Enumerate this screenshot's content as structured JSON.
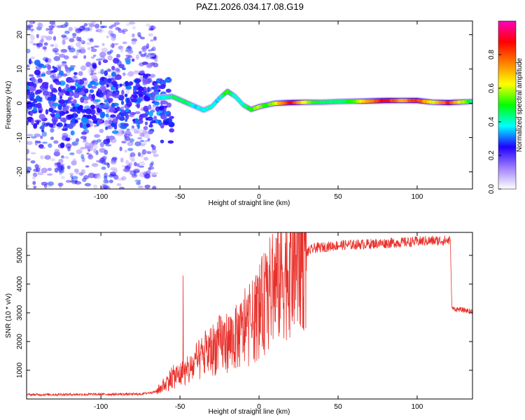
{
  "title": "PAZ1.2026.034.17.08.G19",
  "chart_data": [
    {
      "type": "heatmap",
      "xlabel": "Height of straight line (km)",
      "ylabel": "Frequency (Hz)",
      "xlim": [
        -147,
        135
      ],
      "ylim": [
        -25,
        24
      ],
      "xticks": [
        -100,
        -50,
        0,
        50,
        100
      ],
      "xtick_labels": [
        "-100",
        "-50",
        "0",
        "50",
        "100"
      ],
      "yticks": [
        -20,
        -10,
        0,
        10,
        20
      ],
      "ytick_labels": [
        "-20",
        "-10",
        "0",
        "10",
        "20"
      ],
      "colorbar": {
        "label": "Normalized spectral amplitude",
        "range": [
          0.0,
          1.0
        ],
        "ticks": [
          0.0,
          0.2,
          0.4,
          0.6,
          0.8
        ],
        "tick_labels": [
          "0.0",
          "0.2",
          "0.4",
          "0.6",
          "0.8"
        ],
        "colormap": [
          "#ffffff",
          "#a080ff",
          "#2000ff",
          "#00ffff",
          "#00ff00",
          "#ffff00",
          "#ff8000",
          "#ff0000",
          "#ff00c0"
        ]
      },
      "ridge": [
        {
          "h": -65,
          "f": 1.5,
          "a": 0.35
        },
        {
          "h": -55,
          "f": 2.0,
          "a": 0.45
        },
        {
          "h": -50,
          "f": 1.0,
          "a": 0.45
        },
        {
          "h": -45,
          "f": 0.0,
          "a": 0.45
        },
        {
          "h": -40,
          "f": -1.0,
          "a": 0.35
        },
        {
          "h": -35,
          "f": -2.0,
          "a": 0.4
        },
        {
          "h": -30,
          "f": -1.0,
          "a": 0.4
        },
        {
          "h": -25,
          "f": 1.5,
          "a": 0.35
        },
        {
          "h": -20,
          "f": 3.5,
          "a": 0.55
        },
        {
          "h": -15,
          "f": 2.0,
          "a": 0.4
        },
        {
          "h": -10,
          "f": -0.5,
          "a": 0.4
        },
        {
          "h": -5,
          "f": -1.8,
          "a": 0.5
        },
        {
          "h": 0,
          "f": -1.0,
          "a": 0.6
        },
        {
          "h": 5,
          "f": -0.5,
          "a": 0.5
        },
        {
          "h": 10,
          "f": 0.0,
          "a": 0.6
        },
        {
          "h": 20,
          "f": 0.2,
          "a": 0.9
        },
        {
          "h": 30,
          "f": 0.3,
          "a": 0.6
        },
        {
          "h": 40,
          "f": 0.3,
          "a": 0.45
        },
        {
          "h": 50,
          "f": 0.5,
          "a": 0.45
        },
        {
          "h": 60,
          "f": 0.6,
          "a": 0.5
        },
        {
          "h": 65,
          "f": 0.6,
          "a": 0.65
        },
        {
          "h": 80,
          "f": 0.8,
          "a": 0.9
        },
        {
          "h": 90,
          "f": 0.8,
          "a": 0.7
        },
        {
          "h": 100,
          "f": 0.8,
          "a": 0.85
        },
        {
          "h": 110,
          "f": 0.3,
          "a": 0.6
        },
        {
          "h": 120,
          "f": 0.2,
          "a": 0.85
        },
        {
          "h": 130,
          "f": 0.4,
          "a": 0.55
        },
        {
          "h": 135,
          "f": 0.5,
          "a": 0.45
        }
      ],
      "scatter_noise": {
        "h_range": [
          -147,
          -65
        ],
        "f_range": [
          -25,
          24
        ],
        "amplitude_range": [
          0.05,
          0.3
        ]
      }
    },
    {
      "type": "line",
      "xlabel": "Height of straight line (km)",
      "ylabel": "SNR (10 * v/v)",
      "xlim": [
        -147,
        135
      ],
      "ylim": [
        0,
        5800
      ],
      "xticks": [
        -100,
        -50,
        0,
        50,
        100
      ],
      "xtick_labels": [
        "-100",
        "-50",
        "0",
        "50",
        "100"
      ],
      "yticks": [
        1000,
        2000,
        3000,
        4000,
        5000
      ],
      "ytick_labels": [
        "1000",
        "2000",
        "3000",
        "4000",
        "5000"
      ],
      "color": "#e8302a",
      "envelope": [
        {
          "h": -147,
          "snr": 150
        },
        {
          "h": -75,
          "snr": 170
        },
        {
          "h": -65,
          "snr": 260
        },
        {
          "h": -55,
          "snr": 750
        },
        {
          "h": -45,
          "snr": 950
        },
        {
          "h": -35,
          "snr": 1500
        },
        {
          "h": -25,
          "snr": 1900
        },
        {
          "h": -15,
          "snr": 2100
        },
        {
          "h": -5,
          "snr": 2600
        },
        {
          "h": 5,
          "snr": 3500
        },
        {
          "h": 15,
          "snr": 4400
        },
        {
          "h": 25,
          "snr": 4950
        },
        {
          "h": 35,
          "snr": 5250
        },
        {
          "h": 50,
          "snr": 5350
        },
        {
          "h": 70,
          "snr": 5400
        },
        {
          "h": 90,
          "snr": 5450
        },
        {
          "h": 105,
          "snr": 5500
        },
        {
          "h": 121,
          "snr": 5520
        },
        {
          "h": 122,
          "snr": 3150
        },
        {
          "h": 135,
          "snr": 3050
        }
      ],
      "spike": {
        "h": -48,
        "snr": 4300
      }
    }
  ]
}
